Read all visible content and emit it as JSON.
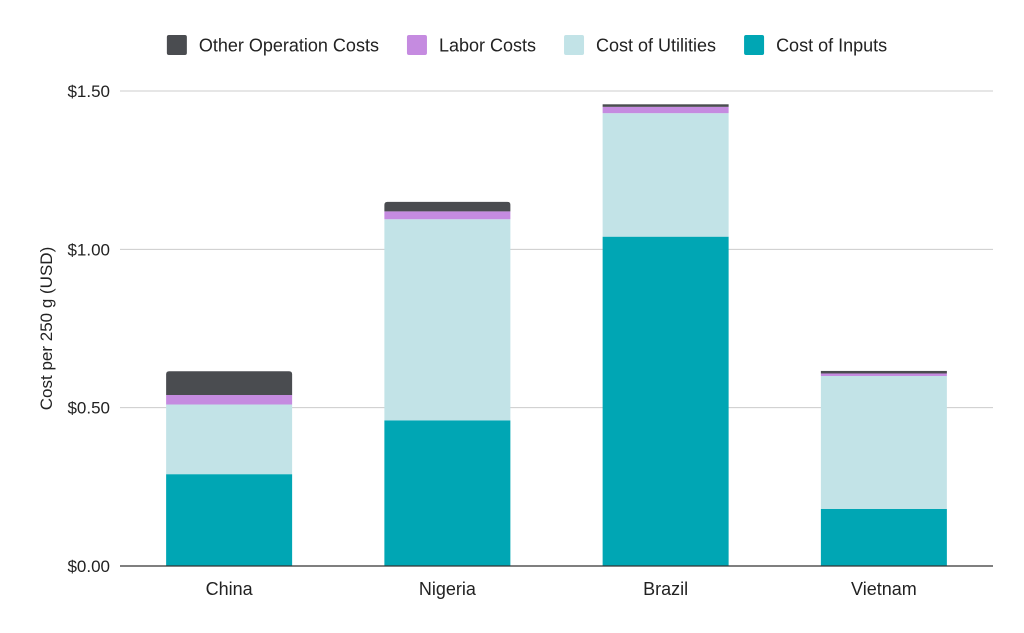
{
  "chart_data": {
    "type": "bar",
    "stacked": true,
    "categories": [
      "China",
      "Nigeria",
      "Brazil",
      "Vietnam"
    ],
    "series": [
      {
        "name": "Cost of Inputs",
        "color": "#00A6B4",
        "values": [
          0.29,
          0.46,
          1.04,
          0.18
        ]
      },
      {
        "name": "Cost of Utilities",
        "color": "#C2E3E7",
        "values": [
          0.22,
          0.635,
          0.39,
          0.42
        ]
      },
      {
        "name": "Labor Costs",
        "color": "#C58BE0",
        "values": [
          0.03,
          0.025,
          0.02,
          0.008
        ]
      },
      {
        "name": "Other Operation Costs",
        "color": "#4A4C50",
        "values": [
          0.075,
          0.03,
          0.008,
          0.008
        ]
      }
    ],
    "legend_order": [
      "Other Operation Costs",
      "Labor Costs",
      "Cost of Utilities",
      "Cost of Inputs"
    ],
    "legend_position": "top",
    "ylabel": "Cost per 250 g (USD)",
    "xlabel": "",
    "ylim": [
      0,
      1.5
    ],
    "yticks": [
      0,
      0.5,
      1.0,
      1.5
    ],
    "ytick_labels": [
      "$0.00",
      "$0.50",
      "$1.00",
      "$1.50"
    ],
    "grid": true
  }
}
